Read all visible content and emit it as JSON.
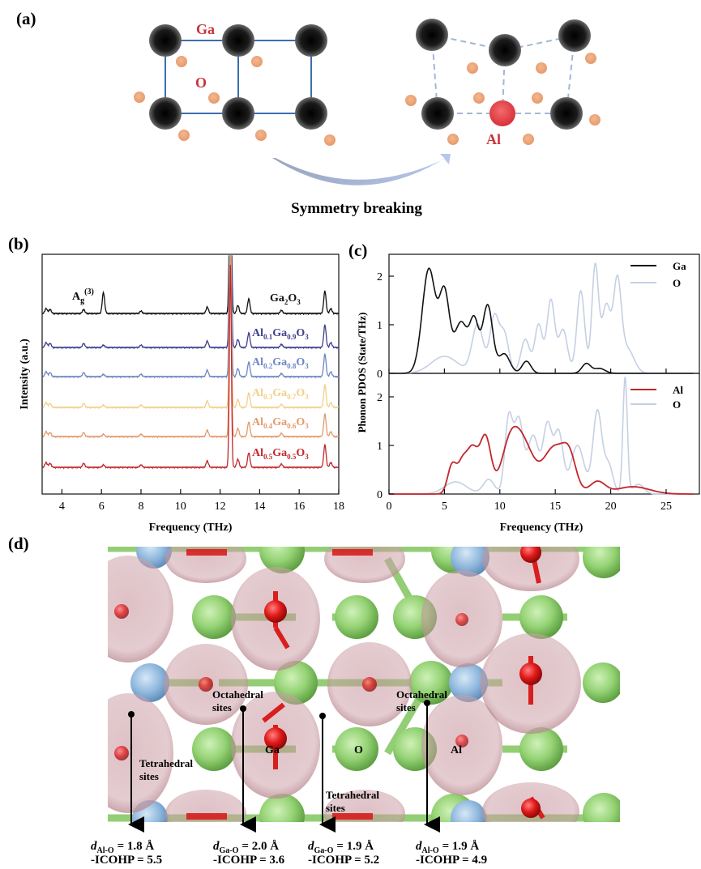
{
  "panels": {
    "a": "(a)",
    "b": "(b)",
    "c": "(c)",
    "d": "(d)"
  },
  "panel_a": {
    "ga_label": "Ga",
    "o_label": "O",
    "al_label": "Al",
    "caption": "Symmetry breaking"
  },
  "panel_b": {
    "ylabel": "Intensity (a.u.)",
    "xlabel": "Frequency (THz)",
    "peak_label_base": "A",
    "peak_label_sub": "g",
    "peak_label_sup": "(3)",
    "x_ticks": [
      "4",
      "6",
      "8",
      "10",
      "12",
      "14",
      "16",
      "18"
    ],
    "spectra": [
      {
        "name": "Ga2O3",
        "parts": [
          "Ga",
          "2",
          "O",
          "3"
        ],
        "color": "#111111"
      },
      {
        "name": "Al0.1Ga0.9O3",
        "parts": [
          "Al",
          "0.1",
          "Ga",
          "0.9",
          "O",
          "3"
        ],
        "color": "#3d3f8f"
      },
      {
        "name": "Al0.2Ga0.8O3",
        "parts": [
          "Al",
          "0.2",
          "Ga",
          "0.8",
          "O",
          "3"
        ],
        "color": "#6b86c4"
      },
      {
        "name": "Al0.3Ga0.7O3",
        "parts": [
          "Al",
          "0.3",
          "Ga",
          "0.7",
          "O",
          "3"
        ],
        "color": "#f2cf8a"
      },
      {
        "name": "Al0.4Ga0.6O3",
        "parts": [
          "Al",
          "0.4",
          "Ga",
          "0.6",
          "O",
          "3"
        ],
        "color": "#e49a6c"
      },
      {
        "name": "Al0.5Ga0.5O3",
        "parts": [
          "Al",
          "0.5",
          "Ga",
          "0.5",
          "O",
          "3"
        ],
        "color": "#c3262c"
      }
    ]
  },
  "panel_c": {
    "ylabel": "Phonon PDOS (State/THz)",
    "xlabel": "Frequency (THz)",
    "x_ticks": [
      "0",
      "5",
      "10",
      "15",
      "20",
      "25"
    ],
    "top_y_ticks": [
      "0",
      "1",
      "2"
    ],
    "bottom_y_ticks": [
      "0",
      "1",
      "2"
    ],
    "top_legend": [
      {
        "label": "Ga",
        "color": "#111111"
      },
      {
        "label": "O",
        "color": "#c5d0e4"
      }
    ],
    "bottom_legend": [
      {
        "label": "Al",
        "color": "#c3262c"
      },
      {
        "label": "O",
        "color": "#c5d0e4"
      }
    ]
  },
  "panel_d": {
    "labels": {
      "octa1": [
        "Octahedral",
        "sites"
      ],
      "octa2": [
        "Octahedral",
        "sites"
      ],
      "tetra1": [
        "Tetrahedral",
        "sites"
      ],
      "tetra2": [
        "Tetrahedral",
        "sites"
      ],
      "ga": "Ga",
      "o": "O",
      "al": "Al"
    },
    "measurements": [
      {
        "d_sub": "Al-O",
        "d_val": "= 1.8 Å",
        "icohp": "-ICOHP = 5.5"
      },
      {
        "d_sub": "Ga-O",
        "d_val": "= 2.0 Å",
        "icohp": "-ICOHP = 3.6"
      },
      {
        "d_sub": "Ga-O",
        "d_val": "= 1.9 Å",
        "icohp": "-ICOHP = 5.2"
      },
      {
        "d_sub": "Al-O",
        "d_val": "= 1.9 Å",
        "icohp": "-ICOHP = 4.9"
      }
    ]
  },
  "colors": {
    "ga_atom": "#1a1a1a",
    "o_atom": "#eba47a",
    "al_atom": "#e04a4f",
    "lattice": "#3b6fb0",
    "struct_ga": "#8ecb6e",
    "struct_al": "#8fb7dc",
    "struct_o": "#d81e1e",
    "iso": "#c9a3ab"
  }
}
